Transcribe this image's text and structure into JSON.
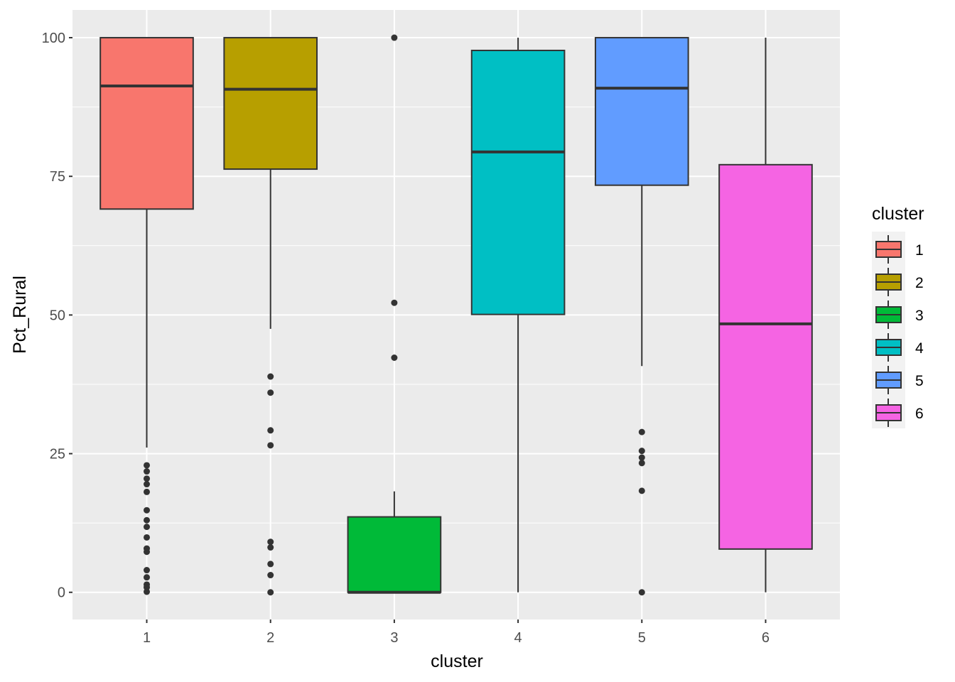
{
  "chart_data": {
    "type": "boxplot",
    "title": "",
    "xlabel": "cluster",
    "ylabel": "Pct_Rural",
    "ylim": [
      -4.9,
      105
    ],
    "yticks": [
      0,
      25,
      50,
      75,
      100
    ],
    "categories": [
      "1",
      "2",
      "3",
      "4",
      "5",
      "6"
    ],
    "grid": true,
    "legend": {
      "title": "cluster",
      "placement": "right",
      "entries": [
        "1",
        "2",
        "3",
        "4",
        "5",
        "6"
      ]
    },
    "colors": [
      "#F8766D",
      "#B79F00",
      "#00BA38",
      "#00BFC4",
      "#619CFF",
      "#F564E3"
    ],
    "boxes": [
      {
        "cluster": "1",
        "lower_whisker": 26.1,
        "q1": 69.1,
        "median": 91.3,
        "q3": 100,
        "upper_whisker": 100,
        "outliers": [
          22.9,
          21.8,
          20.5,
          19.5,
          18.1,
          14.8,
          13.0,
          11.8,
          9.9,
          7.9,
          7.3,
          4.0,
          2.7,
          1.4,
          0.9,
          0.1
        ]
      },
      {
        "cluster": "2",
        "lower_whisker": 47.5,
        "q1": 76.3,
        "median": 90.7,
        "q3": 100,
        "upper_whisker": 100,
        "outliers": [
          38.9,
          36.0,
          29.2,
          26.5,
          9.1,
          8.1,
          5.1,
          3.1,
          0
        ]
      },
      {
        "cluster": "3",
        "lower_whisker": 0,
        "q1": 0,
        "median": 0,
        "q3": 13.6,
        "upper_whisker": 18.2,
        "outliers": [
          100,
          52.2,
          42.3
        ]
      },
      {
        "cluster": "4",
        "lower_whisker": 0,
        "q1": 50.1,
        "median": 79.4,
        "q3": 97.7,
        "upper_whisker": 100,
        "outliers": []
      },
      {
        "cluster": "5",
        "lower_whisker": 40.8,
        "q1": 73.4,
        "median": 90.9,
        "q3": 100,
        "upper_whisker": 100,
        "outliers": [
          28.9,
          25.5,
          24.3,
          23.3,
          18.3,
          0
        ]
      },
      {
        "cluster": "6",
        "lower_whisker": 0,
        "q1": 7.8,
        "median": 48.4,
        "q3": 77.1,
        "upper_whisker": 100,
        "outliers": []
      }
    ]
  }
}
